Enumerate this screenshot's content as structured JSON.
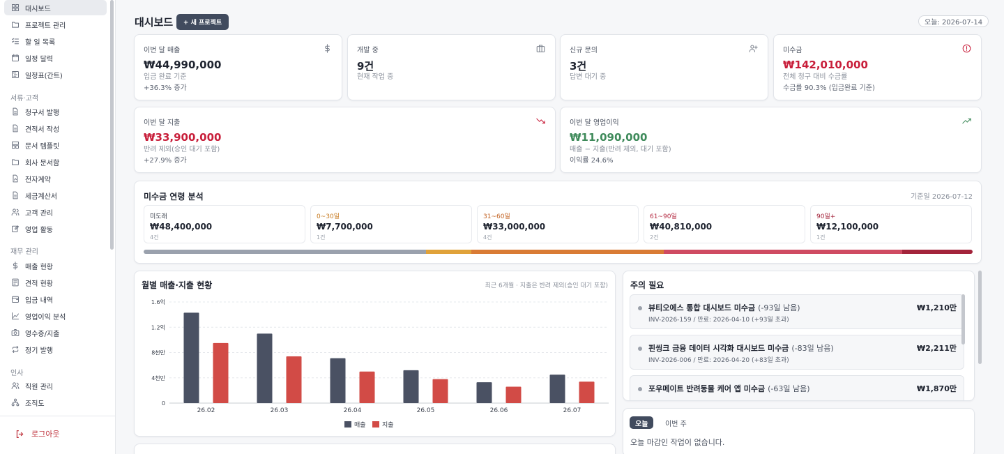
{
  "sidebar": {
    "items_top": [
      {
        "label": "대시보드",
        "icon": "dashboard-icon",
        "active": true
      },
      {
        "label": "프로젝트 관리",
        "icon": "folder-icon"
      },
      {
        "label": "할 일 목록",
        "icon": "checklist-icon"
      },
      {
        "label": "일정 달력",
        "icon": "calendar-icon"
      },
      {
        "label": "일정표(간트)",
        "icon": "gantt-icon"
      }
    ],
    "section_docs": "서류·고객",
    "items_docs": [
      {
        "label": "청구서 발행",
        "icon": "document-icon"
      },
      {
        "label": "견적서 작성",
        "icon": "document-icon"
      },
      {
        "label": "문서 템플릿",
        "icon": "template-icon"
      },
      {
        "label": "회사 문서함",
        "icon": "folder-icon"
      },
      {
        "label": "전자계약",
        "icon": "contract-icon"
      },
      {
        "label": "세금계산서",
        "icon": "document-icon"
      },
      {
        "label": "고객 관리",
        "icon": "users-icon"
      },
      {
        "label": "영업 활동",
        "icon": "edit-icon"
      }
    ],
    "section_finance": "재무 관리",
    "items_finance": [
      {
        "label": "매출 현황",
        "icon": "dollar-icon"
      },
      {
        "label": "견적 현황",
        "icon": "receipt-icon"
      },
      {
        "label": "입금 내역",
        "icon": "wallet-icon"
      },
      {
        "label": "영업이익 분석",
        "icon": "line-chart-icon"
      },
      {
        "label": "영수증/지출",
        "icon": "camera-icon"
      },
      {
        "label": "정기 발행",
        "icon": "repeat-icon"
      }
    ],
    "section_hr": "인사",
    "items_hr": [
      {
        "label": "직원 관리",
        "icon": "users-icon"
      },
      {
        "label": "조직도",
        "icon": "org-chart-icon"
      }
    ],
    "logout": "로그아웃"
  },
  "header": {
    "title": "대시보드",
    "new_project": "+ 새 프로젝트",
    "today": "오늘: 2026-07-14"
  },
  "kpis": [
    {
      "label": "이번 달 매출",
      "value": "₩44,990,000",
      "sub": "입금 완료 기준",
      "sub2": "+36.3% 증가",
      "icon": "dollar-icon",
      "tone": "default"
    },
    {
      "label": "개발 중",
      "value": "9건",
      "sub": "현재 작업 중",
      "sub2": "",
      "icon": "briefcase-icon",
      "tone": "default"
    },
    {
      "label": "신규 문의",
      "value": "3건",
      "sub": "답변 대기 중",
      "sub2": "",
      "icon": "user-plus-icon",
      "tone": "default"
    },
    {
      "label": "미수금",
      "value": "₩142,010,000",
      "sub": "전체 청구 대비 수금률",
      "sub2": "수금률 90.3% (입금완료 기준)",
      "icon": "alert-circle-icon",
      "tone": "red"
    }
  ],
  "kpis_wide": [
    {
      "label": "이번 달 지출",
      "value": "₩33,900,000",
      "sub": "반려 제외(승인 대기 포함)",
      "sub2": "+27.9% 증가",
      "icon": "trending-down-icon",
      "tone": "red"
    },
    {
      "label": "이번 달 영업이익",
      "value": "₩11,090,000",
      "sub": "매출 − 지출(반려 제외, 대기 포함)",
      "sub2": "이익률 24.6%",
      "icon": "trending-up-icon",
      "tone": "green"
    }
  ],
  "aging": {
    "title": "미수금 연령 분석",
    "date": "기준일 2026-07-12",
    "buckets": [
      {
        "label": "미도래",
        "value": "₩48,400,000",
        "count": "4건",
        "color": "#9aa1ad",
        "label_color": "#3a404c",
        "share": 0.3408
      },
      {
        "label": "0~30일",
        "value": "₩7,700,000",
        "count": "1건",
        "color": "#e0a23a",
        "label_color": "#c77a20",
        "share": 0.0542
      },
      {
        "label": "31~60일",
        "value": "₩33,000,000",
        "count": "4건",
        "color": "#d97b35",
        "label_color": "#c2601f",
        "share": 0.2324
      },
      {
        "label": "61~90일",
        "value": "₩40,810,000",
        "count": "2건",
        "color": "#cf4b62",
        "label_color": "#b3263e",
        "share": 0.2874
      },
      {
        "label": "90일+",
        "value": "₩12,100,000",
        "count": "1건",
        "color": "#a3243b",
        "label_color": "#a3243b",
        "share": 0.0852
      }
    ]
  },
  "chart": {
    "title": "월별 매출·지출 현황",
    "note": "최근 6개월 · 지출은 반려 제외(승인 대기 포함)"
  },
  "chart_data": {
    "type": "bar",
    "categories": [
      "26.02",
      "26.03",
      "26.04",
      "26.05",
      "26.06",
      "26.07"
    ],
    "series": [
      {
        "name": "매출",
        "color": "#4a5163",
        "values": [
          14300,
          11000,
          7100,
          5200,
          3300,
          4500
        ]
      },
      {
        "name": "지출",
        "color": "#d24b46",
        "values": [
          9500,
          7400,
          5000,
          3800,
          2600,
          3400
        ]
      }
    ],
    "yticks": [
      {
        "v": 0,
        "label": "0"
      },
      {
        "v": 4000,
        "label": "4천만"
      },
      {
        "v": 8000,
        "label": "8천만"
      },
      {
        "v": 12000,
        "label": "1.2억"
      },
      {
        "v": 16000,
        "label": "1.6억"
      }
    ],
    "ylim": [
      0,
      16000
    ],
    "legend": "bottom",
    "grid": true
  },
  "attention": {
    "title": "주의 필요",
    "items": [
      {
        "name": "뷰티오에스 통합 대시보드 미수금",
        "dday": "(-93일 남음)",
        "meta": "INV-2026-159 / 만료: 2026-04-10 (+93일 초과)",
        "amount": "₩1,210만"
      },
      {
        "name": "핀씽크 금융 데이터 시각화 대시보드 미수금",
        "dday": "(-83일 남음)",
        "meta": "INV-2026-006 / 만료: 2026-04-20 (+83일 초과)",
        "amount": "₩2,211만"
      },
      {
        "name": "포우메이트 반려동물 케어 앱 미수금",
        "dday": "(-63일 남음)",
        "meta": "",
        "amount": "₩1,870만"
      }
    ]
  },
  "deadline": {
    "tab_today": "오늘",
    "tab_week": "이번 주",
    "empty": "오늘 마감인 작업이 없습니다."
  }
}
